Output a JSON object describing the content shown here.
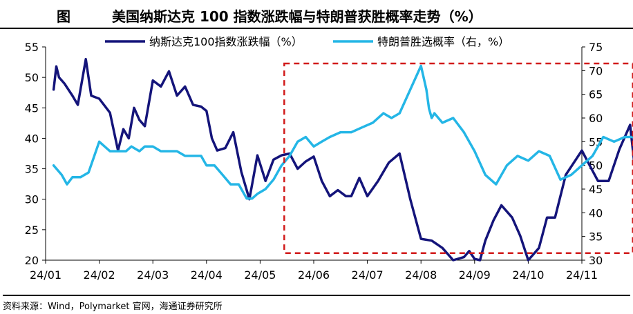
{
  "figure": {
    "label": "图",
    "title": "美国纳斯达克 100 指数涨跌幅与特朗普获胜概率走势（%）"
  },
  "source": "资料来源：Wind，Polymarket 官网，海通证券研究所",
  "chart_data": {
    "type": "line",
    "dual_axis": true,
    "x_ticks": [
      "24/01",
      "24/02",
      "24/03",
      "24/04",
      "24/05",
      "24/06",
      "24/07",
      "24/08",
      "24/09",
      "24/10",
      "24/11"
    ],
    "y_left": {
      "lim": [
        20,
        55
      ],
      "ticks": [
        20,
        25,
        30,
        35,
        40,
        45,
        50,
        55
      ]
    },
    "y_right": {
      "lim": [
        30,
        75
      ],
      "ticks": [
        30,
        35,
        40,
        45,
        50,
        55,
        60,
        65,
        70,
        75
      ]
    },
    "legend_position": "top",
    "series": [
      {
        "name": "纳斯达克100指数涨跌幅（%）",
        "axis": "left",
        "color": "#14147a",
        "x": [
          0.15,
          0.2,
          0.25,
          0.35,
          0.5,
          0.6,
          0.75,
          0.85,
          1.0,
          1.2,
          1.35,
          1.45,
          1.55,
          1.65,
          1.75,
          1.85,
          2.0,
          2.15,
          2.3,
          2.45,
          2.6,
          2.75,
          2.9,
          3.0,
          3.1,
          3.2,
          3.35,
          3.5,
          3.65,
          3.8,
          3.95,
          4.1,
          4.25,
          4.4,
          4.55,
          4.7,
          4.85,
          5.0,
          5.15,
          5.3,
          5.45,
          5.6,
          5.7,
          5.85,
          6.0,
          6.2,
          6.4,
          6.6,
          6.8,
          7.0,
          7.2,
          7.4,
          7.6,
          7.8,
          7.9,
          8.0,
          8.1,
          8.2,
          8.35,
          8.5,
          8.7,
          8.85,
          9.0,
          9.2,
          9.35,
          9.5,
          9.7,
          9.85,
          10.0,
          10.15,
          10.3,
          10.5,
          10.7,
          10.9,
          10.97
        ],
        "y": [
          48,
          51.8,
          50,
          49,
          47,
          45.5,
          53,
          47,
          46.5,
          44.2,
          38,
          41.5,
          40,
          45,
          43,
          42,
          49.5,
          48.5,
          51,
          47,
          48.5,
          45.5,
          45.2,
          44.5,
          40,
          38,
          38.4,
          41,
          34.5,
          30,
          37.2,
          33,
          36.5,
          37.2,
          37.5,
          35,
          36.2,
          37,
          33,
          30.5,
          31.5,
          30.5,
          30.5,
          33.5,
          30.5,
          33,
          36,
          37.5,
          30,
          23.5,
          23.2,
          22,
          20,
          20.5,
          21.5,
          20.2,
          19.3,
          23.2,
          26.5,
          29,
          27,
          24,
          18.5,
          22,
          27,
          27,
          34,
          36,
          38,
          35.5,
          33,
          33,
          38.2,
          42.2,
          36.5
        ]
      },
      {
        "name": "特朗普胜选概率（右，%）",
        "axis": "right",
        "color": "#24b6e6",
        "x": [
          0.15,
          0.3,
          0.4,
          0.5,
          0.65,
          0.8,
          1.0,
          1.2,
          1.35,
          1.5,
          1.6,
          1.75,
          1.85,
          2.0,
          2.15,
          2.3,
          2.45,
          2.6,
          2.75,
          2.9,
          3.0,
          3.15,
          3.3,
          3.45,
          3.6,
          3.75,
          3.85,
          3.95,
          4.1,
          4.25,
          4.4,
          4.55,
          4.7,
          4.85,
          5.0,
          5.15,
          5.3,
          5.5,
          5.7,
          5.9,
          6.1,
          6.3,
          6.45,
          6.6,
          6.8,
          7.0,
          7.1,
          7.15,
          7.2,
          7.25,
          7.4,
          7.6,
          7.8,
          8.0,
          8.2,
          8.4,
          8.6,
          8.8,
          9.0,
          9.2,
          9.4,
          9.6,
          9.8,
          10.0,
          10.2,
          10.4,
          10.6,
          10.8,
          11.0,
          11.07
        ],
        "y": [
          50,
          48,
          46,
          47.5,
          47.5,
          48.5,
          55,
          53,
          53,
          53,
          54,
          53,
          54,
          54,
          53,
          53,
          53,
          52,
          52,
          52,
          50,
          50,
          48,
          46,
          46,
          43,
          43,
          44,
          45,
          47,
          50,
          52,
          55,
          56,
          54,
          55,
          56,
          57,
          57,
          58,
          59,
          61,
          60,
          61,
          66,
          71,
          66,
          62,
          60,
          61,
          59,
          60,
          57,
          53,
          48,
          46,
          50,
          52,
          51,
          53,
          52,
          47,
          48,
          50,
          52,
          56,
          55,
          56,
          56,
          56
        ]
      }
    ]
  },
  "highlight": {
    "note": "red dashed box",
    "x_range": [
      4.45,
      10.95
    ],
    "y_right_range": [
      31.5,
      71.5
    ]
  }
}
